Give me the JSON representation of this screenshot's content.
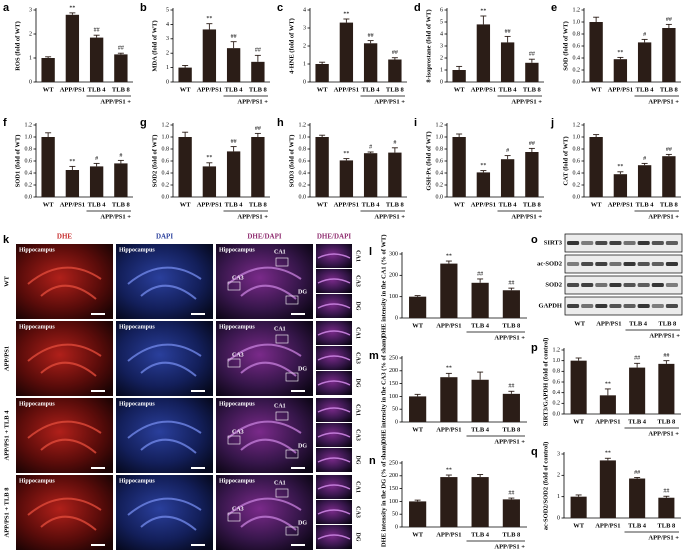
{
  "chart_data": [
    {
      "type": "bar",
      "panel_label": "a",
      "y_label": "ROS (fold of WT)",
      "categories": [
        "WT",
        "APP/PS1",
        "TLB 4",
        "TLB 8"
      ],
      "group_label": "APP/PS1 +",
      "values": [
        1.0,
        2.8,
        1.85,
        1.15
      ],
      "errors": [
        0.05,
        0.08,
        0.1,
        0.05
      ],
      "annotations": [
        null,
        "**",
        "##",
        "##"
      ],
      "color": "#2b1d17",
      "ylim": [
        0,
        3
      ],
      "yticks": [
        0,
        1,
        2,
        3
      ]
    },
    {
      "type": "bar",
      "panel_label": "b",
      "y_label": "MDA (fold of WT)",
      "categories": [
        "WT",
        "APP/PS1",
        "TLB 4",
        "TLB 8"
      ],
      "group_label": "APP/PS1 +",
      "values": [
        1.0,
        3.65,
        2.35,
        1.4
      ],
      "errors": [
        0.15,
        0.4,
        0.45,
        0.45
      ],
      "annotations": [
        null,
        "**",
        "##",
        "##"
      ],
      "color": "#2b1d17",
      "ylim": [
        0,
        5
      ],
      "yticks": [
        0,
        1,
        2,
        3,
        4,
        5
      ]
    },
    {
      "type": "bar",
      "panel_label": "c",
      "y_label": "4-HNE (fold of WT)",
      "categories": [
        "WT",
        "APP/PS1",
        "TLB 4",
        "TLB 8"
      ],
      "group_label": "APP/PS1 +",
      "values": [
        1.0,
        3.3,
        2.15,
        1.25
      ],
      "errors": [
        0.1,
        0.2,
        0.15,
        0.1
      ],
      "annotations": [
        null,
        "**",
        "##",
        "##"
      ],
      "color": "#2b1d17",
      "ylim": [
        0,
        4
      ],
      "yticks": [
        0,
        1,
        2,
        3,
        4
      ]
    },
    {
      "type": "bar",
      "panel_label": "d",
      "y_label": "8-isoprostane (fold of WT)",
      "categories": [
        "WT",
        "APP/PS1",
        "TLB 4",
        "TLB 8"
      ],
      "group_label": "APP/PS1 +",
      "values": [
        1.0,
        4.8,
        3.3,
        1.6
      ],
      "errors": [
        0.3,
        0.7,
        0.5,
        0.3
      ],
      "annotations": [
        null,
        "**",
        "##",
        "##"
      ],
      "color": "#2b1d17",
      "ylim": [
        0,
        6
      ],
      "yticks": [
        0,
        1,
        2,
        3,
        4,
        5,
        6
      ]
    },
    {
      "type": "bar",
      "panel_label": "e",
      "y_label": "SOD (fold of WT)",
      "categories": [
        "WT",
        "APP/PS1",
        "TLB 4",
        "TLB 8"
      ],
      "group_label": "APP/PS1 +",
      "values": [
        1.0,
        0.38,
        0.66,
        0.9
      ],
      "errors": [
        0.08,
        0.03,
        0.05,
        0.06
      ],
      "annotations": [
        null,
        "**",
        "#",
        "##"
      ],
      "color": "#2b1d17",
      "ylim": [
        0,
        1.2
      ],
      "yticks": [
        {
          "value": 0,
          "label": "0.0"
        },
        0.2,
        0.4,
        0.6,
        0.8,
        {
          "value": 1,
          "label": "1.0"
        },
        1.2
      ]
    },
    {
      "type": "bar",
      "panel_label": "f",
      "y_label": "SOD1 (fold of WT)",
      "categories": [
        "WT",
        "APP/PS1",
        "TLB 4",
        "TLB 8"
      ],
      "group_label": "APP/PS1 +",
      "values": [
        1.0,
        0.45,
        0.51,
        0.56
      ],
      "errors": [
        0.07,
        0.06,
        0.05,
        0.05
      ],
      "annotations": [
        null,
        "**",
        "#",
        "#"
      ],
      "color": "#2b1d17",
      "ylim": [
        0,
        1.2
      ],
      "yticks": [
        {
          "value": 0,
          "label": "0.0"
        },
        0.2,
        0.4,
        0.6,
        0.8,
        {
          "value": 1,
          "label": "1.0"
        },
        1.2
      ]
    },
    {
      "type": "bar",
      "panel_label": "g",
      "y_label": "SOD2 (fold of WT)",
      "categories": [
        "WT",
        "APP/PS1",
        "TLB 4",
        "TLB 8"
      ],
      "group_label": "APP/PS1 +",
      "values": [
        1.0,
        0.51,
        0.76,
        1.0
      ],
      "errors": [
        0.08,
        0.06,
        0.08,
        0.06
      ],
      "annotations": [
        null,
        "**",
        "##",
        "##"
      ],
      "color": "#2b1d17",
      "ylim": [
        0,
        1.2
      ],
      "yticks": [
        {
          "value": 0,
          "label": "0.0"
        },
        0.2,
        0.4,
        0.6,
        0.8,
        {
          "value": 1,
          "label": "1.0"
        },
        1.2
      ]
    },
    {
      "type": "bar",
      "panel_label": "h",
      "y_label": "SOD3 (fold of WT)",
      "categories": [
        "WT",
        "APP/PS1",
        "TLB 4",
        "TLB 8"
      ],
      "group_label": "APP/PS1 +",
      "values": [
        1.0,
        0.61,
        0.73,
        0.74
      ],
      "errors": [
        0.03,
        0.03,
        0.02,
        0.08
      ],
      "annotations": [
        null,
        "**",
        "#",
        "#"
      ],
      "color": "#2b1d17",
      "ylim": [
        0,
        1.2
      ],
      "yticks": [
        {
          "value": 0,
          "label": "0.0"
        },
        0.2,
        0.4,
        0.6,
        0.8,
        {
          "value": 1,
          "label": "1.0"
        },
        1.2
      ]
    },
    {
      "type": "bar",
      "panel_label": "i",
      "y_label": "GSH-Px (fold of WT)",
      "categories": [
        "WT",
        "APP/PS1",
        "TLB 4",
        "TLB 8"
      ],
      "group_label": "APP/PS1 +",
      "values": [
        1.0,
        0.41,
        0.63,
        0.75
      ],
      "errors": [
        0.05,
        0.03,
        0.06,
        0.06
      ],
      "annotations": [
        null,
        "**",
        "#",
        "##"
      ],
      "color": "#2b1d17",
      "ylim": [
        0,
        1.2
      ],
      "yticks": [
        {
          "value": 0,
          "label": "0.0"
        },
        0.2,
        0.4,
        0.6,
        0.8,
        {
          "value": 1,
          "label": "1.0"
        },
        1.2
      ]
    },
    {
      "type": "bar",
      "panel_label": "j",
      "y_label": "CAT (fold of WT)",
      "categories": [
        "WT",
        "APP/PS1",
        "TLB 4",
        "TLB 8"
      ],
      "group_label": "APP/PS1 +",
      "values": [
        1.0,
        0.38,
        0.53,
        0.68
      ],
      "errors": [
        0.04,
        0.04,
        0.03,
        0.03
      ],
      "annotations": [
        null,
        "**",
        "#",
        "##"
      ],
      "color": "#2b1d17",
      "ylim": [
        0,
        1.2
      ],
      "yticks": [
        {
          "value": 0,
          "label": "0.0"
        },
        0.2,
        0.4,
        0.6,
        0.8,
        {
          "value": 1,
          "label": "1.0"
        },
        1.2
      ]
    },
    {
      "type": "bar",
      "panel_label": "l",
      "y_label": "DHE intensity in the CA1 (% of WT)",
      "categories": [
        "WT",
        "APP/PS1",
        "TLB 4",
        "TLB 8"
      ],
      "group_label": "APP/PS1 +",
      "values": [
        100,
        255,
        165,
        130
      ],
      "errors": [
        5,
        12,
        18,
        10
      ],
      "annotations": [
        null,
        "**",
        "##",
        "##"
      ],
      "color": "#2b1d17",
      "ylim": [
        0,
        300
      ],
      "yticks": [
        0,
        100,
        200,
        300
      ]
    },
    {
      "type": "bar",
      "panel_label": "m",
      "y_label": "DHE intensity in the CA3 (% of sham)",
      "categories": [
        "WT",
        "APP/PS1",
        "TLB 4",
        "TLB 8"
      ],
      "group_label": "APP/PS1 +",
      "values": [
        100,
        175,
        165,
        110
      ],
      "errors": [
        8,
        15,
        30,
        10
      ],
      "annotations": [
        null,
        "**",
        null,
        "##"
      ],
      "color": "#2b1d17",
      "ylim": [
        0,
        250
      ],
      "yticks": [
        0,
        50,
        100,
        150,
        200,
        250
      ]
    },
    {
      "type": "bar",
      "panel_label": "n",
      "y_label": "DHE intensity in the DG (% of sham)",
      "categories": [
        "WT",
        "APP/PS1",
        "TLB 4",
        "TLB 8"
      ],
      "group_label": "APP/PS1 +",
      "values": [
        100,
        195,
        195,
        108
      ],
      "errors": [
        5,
        8,
        10,
        5
      ],
      "annotations": [
        null,
        "**",
        null,
        "##"
      ],
      "color": "#2b1d17",
      "ylim": [
        0,
        250
      ],
      "yticks": [
        0,
        50,
        100,
        150,
        200,
        250
      ]
    },
    {
      "type": "bar",
      "panel_label": "p",
      "y_label": "SIRT3/GAPDH (fold of control)",
      "categories": [
        "WT",
        "APP/PS1",
        "TLB 4",
        "TLB 8"
      ],
      "group_label": "APP/PS1 +",
      "values": [
        1.0,
        0.35,
        0.87,
        0.94
      ],
      "errors": [
        0.05,
        0.12,
        0.08,
        0.06
      ],
      "annotations": [
        null,
        "**",
        "##",
        "##"
      ],
      "color": "#2b1d17",
      "ylim": [
        0,
        1.2
      ],
      "yticks": [
        {
          "value": 0,
          "label": "0.0"
        },
        0.2,
        0.4,
        0.6,
        0.8,
        {
          "value": 1,
          "label": "1.0"
        },
        1.2
      ]
    },
    {
      "type": "bar",
      "panel_label": "q",
      "y_label": "ac-SOD2/SOD2 (fold of control)",
      "categories": [
        "WT",
        "APP/PS1",
        "TLB 4",
        "TLB 8"
      ],
      "group_label": "APP/PS1 +",
      "values": [
        1.0,
        2.7,
        1.85,
        0.95
      ],
      "errors": [
        0.08,
        0.1,
        0.05,
        0.07
      ],
      "annotations": [
        null,
        "**",
        "##",
        "##"
      ],
      "color": "#2b1d17",
      "ylim": [
        0,
        3
      ],
      "yticks": [
        0,
        1,
        2,
        3
      ]
    }
  ],
  "image_panel": {
    "panel_label": "k",
    "columns": [
      "DHE",
      "DAPI",
      "DHE/DAPI"
    ],
    "rows": [
      "WT",
      "APP/PS1",
      "APP/PS1 + TLB 4",
      "APP/PS1 + TLB 8"
    ],
    "image_title": "Hippocampus",
    "regions": [
      "CA1",
      "CA3",
      "DG"
    ]
  },
  "blot_panel": {
    "panel_label": "o",
    "proteins": [
      "SIRT3",
      "ac-SOD2",
      "SOD2",
      "GAPDH"
    ],
    "categories": [
      "WT",
      "APP/PS1",
      "TLB 4",
      "TLB 8"
    ],
    "group_label": "APP/PS1 +"
  }
}
